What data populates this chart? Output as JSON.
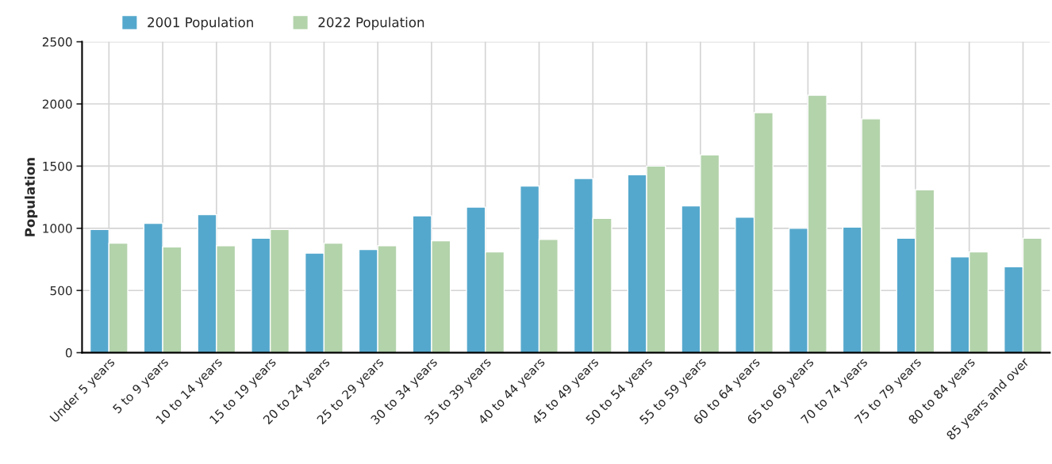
{
  "chart_data": {
    "type": "bar",
    "ylabel": "Population",
    "categories": [
      "Under 5 years",
      "5 to 9 years",
      "10 to 14 years",
      "15 to 19 years",
      "20 to 24 years",
      "25 to 29 years",
      "30 to 34 years",
      "35 to 39 years",
      "40 to 44 years",
      "45 to 49 years",
      "50 to 54 years",
      "55 to 59 years",
      "60 to 64 years",
      "65 to 69 years",
      "70 to 74 years",
      "75 to 79 years",
      "80 to 84 years",
      "85 years and over"
    ],
    "series": [
      {
        "name": "2001 Population",
        "color": "#55a8cd",
        "values": [
          990,
          1040,
          1110,
          920,
          800,
          830,
          1100,
          1170,
          1340,
          1400,
          1430,
          1180,
          1090,
          1000,
          1010,
          920,
          770,
          690
        ]
      },
      {
        "name": "2022 Population",
        "color": "#b3d3ab",
        "values": [
          880,
          850,
          860,
          990,
          880,
          860,
          900,
          810,
          910,
          1080,
          1500,
          1590,
          1930,
          2070,
          1880,
          1310,
          810,
          920
        ]
      }
    ],
    "ylim": [
      0,
      2500
    ],
    "yticks": [
      0,
      500,
      1000,
      1500,
      2000,
      2500
    ],
    "grid": true,
    "legend": "top left"
  }
}
